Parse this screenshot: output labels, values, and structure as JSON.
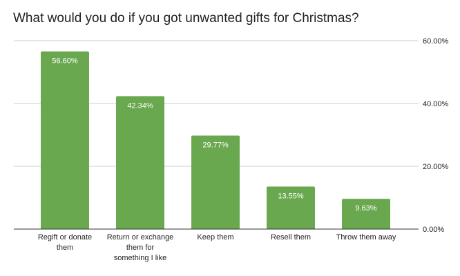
{
  "chart_data": {
    "type": "bar",
    "title": "What would you do if you got unwanted gifts for Christmas?",
    "categories": [
      [
        "Regift or donate",
        "them"
      ],
      [
        "Return or exchange",
        "them for",
        "something I like"
      ],
      [
        "Keep them"
      ],
      [
        "Resell them"
      ],
      [
        "Throw them away"
      ]
    ],
    "values": [
      56.6,
      42.34,
      29.77,
      13.55,
      9.63
    ],
    "data_labels": [
      "56.60%",
      "42.34%",
      "29.77%",
      "13.55%",
      "9.63%"
    ],
    "yticks": [
      0,
      20,
      40,
      60
    ],
    "ytick_labels": [
      "0.00%",
      "20.00%",
      "40.00%",
      "60.00%"
    ],
    "ylim": [
      0,
      60
    ],
    "y_axis_position": "right",
    "grid": true,
    "xlabel": "",
    "ylabel": "",
    "bar_color": "#6aa84f"
  }
}
